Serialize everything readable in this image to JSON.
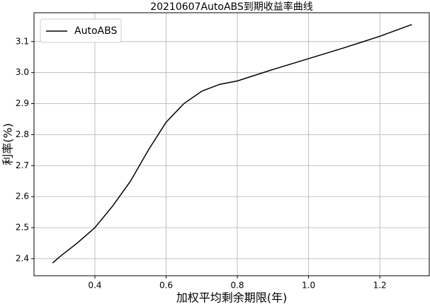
{
  "chart_data": {
    "type": "line",
    "title": "20210607AutoABS到期收益率曲线",
    "xlabel": "加权平均剩余期限(年)",
    "ylabel": "利率(%)",
    "x": [
      0.281,
      0.3,
      0.35,
      0.4,
      0.45,
      0.5,
      0.55,
      0.6,
      0.65,
      0.7,
      0.75,
      0.8,
      0.9,
      1.0,
      1.1,
      1.2,
      1.29
    ],
    "series": [
      {
        "name": "AutoABS",
        "color": "#000000",
        "values": [
          2.386,
          2.405,
          2.45,
          2.5,
          2.57,
          2.65,
          2.75,
          2.84,
          2.9,
          2.94,
          2.962,
          2.973,
          3.01,
          3.045,
          3.08,
          3.117,
          3.155
        ]
      }
    ],
    "xlim": [
      0.229,
      1.339
    ],
    "ylim": [
      2.345,
      3.193
    ],
    "xticks": [
      0.4,
      0.6,
      0.8,
      {
        "value": 1.0,
        "label": "1.0"
      },
      1.2
    ],
    "yticks": [
      2.4,
      2.5,
      2.6,
      2.7,
      2.8,
      2.9,
      {
        "value": 3.0,
        "label": "3.0"
      },
      3.1
    ],
    "grid": true,
    "legend": "upper left"
  }
}
